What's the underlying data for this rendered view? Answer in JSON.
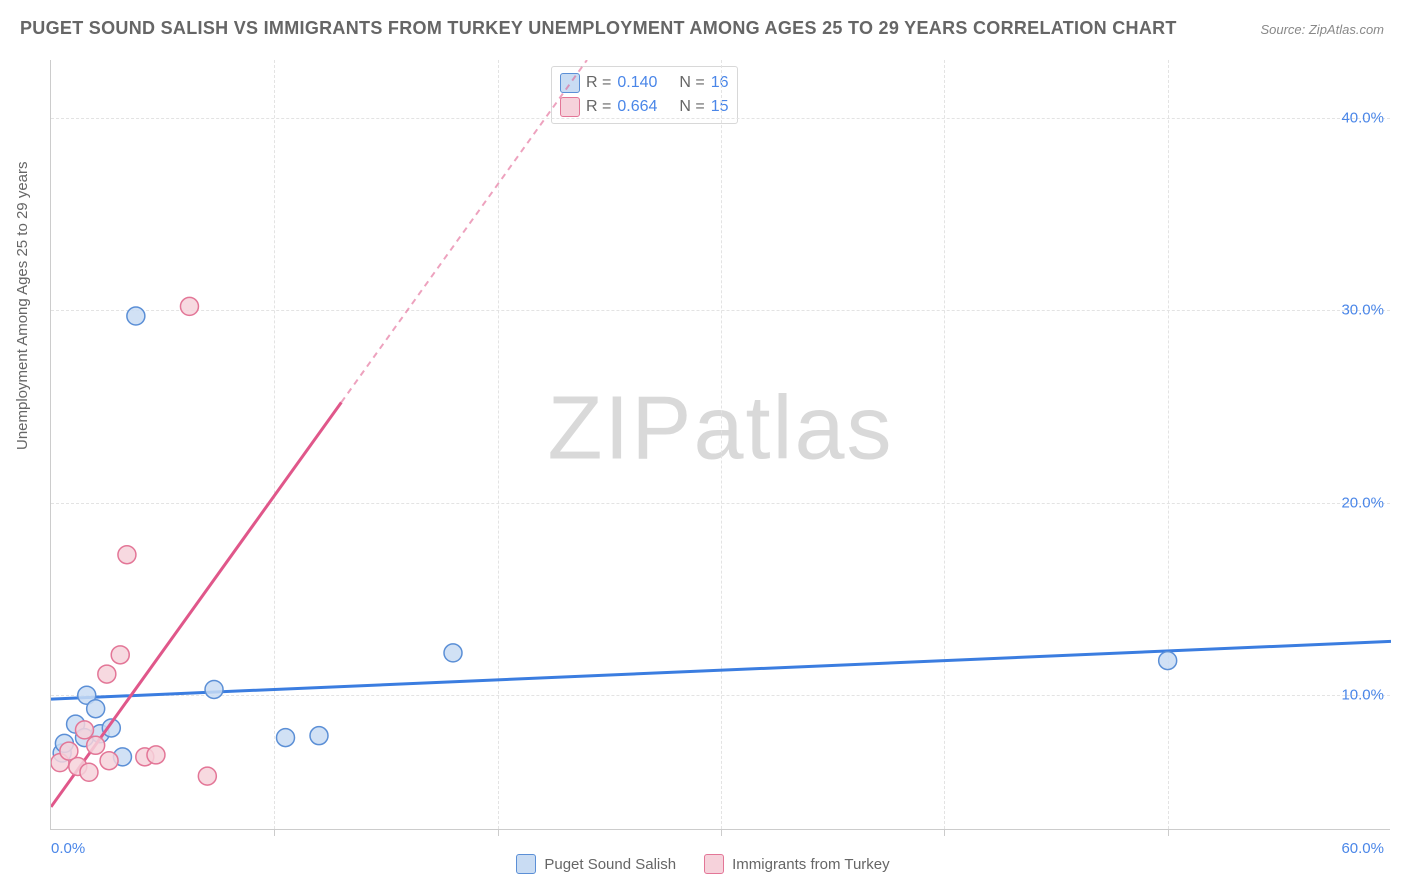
{
  "title": "PUGET SOUND SALISH VS IMMIGRANTS FROM TURKEY UNEMPLOYMENT AMONG AGES 25 TO 29 YEARS CORRELATION CHART",
  "source": "Source: ZipAtlas.com",
  "watermark": "ZIPatlas",
  "yaxis_label": "Unemployment Among Ages 25 to 29 years",
  "chart": {
    "type": "scatter",
    "background_color": "#ffffff",
    "grid_color": "#e3e3e3",
    "axis_color": "#cccccc",
    "tick_color": "#4a86e8",
    "xlim": [
      0,
      60
    ],
    "ylim": [
      3,
      43
    ],
    "yticks": [
      10,
      20,
      30,
      40
    ],
    "ytick_labels": [
      "10.0%",
      "20.0%",
      "30.0%",
      "40.0%"
    ],
    "x_minor_ticks": [
      10,
      20,
      30,
      40,
      50
    ],
    "xtick_left": "0.0%",
    "xtick_right": "60.0%",
    "marker_radius": 9,
    "marker_stroke_width": 1.5,
    "series": [
      {
        "name": "Puget Sound Salish",
        "fill": "#c9dcf3",
        "stroke": "#5b8fd6",
        "line_color": "#3b7de0",
        "line_dash_after": 60,
        "r_value": "0.140",
        "n_value": "16",
        "regression": {
          "x1": 0,
          "y1": 9.8,
          "x2": 60,
          "y2": 12.8
        },
        "points": [
          {
            "x": 0.5,
            "y": 7.0
          },
          {
            "x": 0.6,
            "y": 7.5
          },
          {
            "x": 1.1,
            "y": 8.5
          },
          {
            "x": 1.5,
            "y": 7.8
          },
          {
            "x": 1.6,
            "y": 10.0
          },
          {
            "x": 2.0,
            "y": 9.3
          },
          {
            "x": 2.2,
            "y": 8.0
          },
          {
            "x": 2.7,
            "y": 8.3
          },
          {
            "x": 3.2,
            "y": 6.8
          },
          {
            "x": 3.8,
            "y": 29.7
          },
          {
            "x": 7.3,
            "y": 10.3
          },
          {
            "x": 10.5,
            "y": 7.8
          },
          {
            "x": 12.0,
            "y": 7.9
          },
          {
            "x": 18.0,
            "y": 12.2
          },
          {
            "x": 50.0,
            "y": 11.8
          }
        ]
      },
      {
        "name": "Immigrants from Turkey",
        "fill": "#f6d2db",
        "stroke": "#e37697",
        "line_color": "#e0578a",
        "line_dash_after": 13,
        "r_value": "0.664",
        "n_value": "15",
        "regression": {
          "x1": 0,
          "y1": 4.2,
          "x2": 24,
          "y2": 43
        },
        "points": [
          {
            "x": 0.4,
            "y": 6.5
          },
          {
            "x": 0.8,
            "y": 7.1
          },
          {
            "x": 1.2,
            "y": 6.3
          },
          {
            "x": 1.5,
            "y": 8.2
          },
          {
            "x": 1.7,
            "y": 6.0
          },
          {
            "x": 2.0,
            "y": 7.4
          },
          {
            "x": 2.5,
            "y": 11.1
          },
          {
            "x": 2.6,
            "y": 6.6
          },
          {
            "x": 3.1,
            "y": 12.1
          },
          {
            "x": 3.4,
            "y": 17.3
          },
          {
            "x": 4.2,
            "y": 6.8
          },
          {
            "x": 4.7,
            "y": 6.9
          },
          {
            "x": 6.2,
            "y": 30.2
          },
          {
            "x": 7.0,
            "y": 5.8
          }
        ]
      }
    ]
  },
  "legend_top": {
    "r_label": "R =",
    "n_label": "N ="
  },
  "legend_bottom": [
    {
      "label": "Puget Sound Salish",
      "fill": "#c9dcf3",
      "stroke": "#5b8fd6"
    },
    {
      "label": "Immigrants from Turkey",
      "fill": "#f6d2db",
      "stroke": "#e37697"
    }
  ]
}
